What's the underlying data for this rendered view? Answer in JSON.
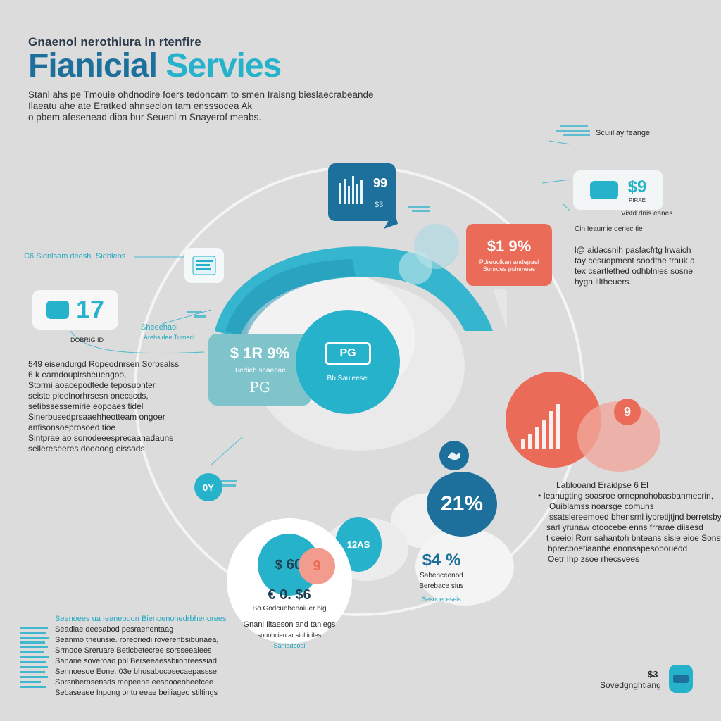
{
  "colors": {
    "background": "#dcdcdc",
    "primary_dark": "#1d6f9c",
    "teal": "#27b2cc",
    "coral": "#ea6b57",
    "white": "#ffffff"
  },
  "header": {
    "pretitle": "Gnaenol nerothiura in rtenfire",
    "title_part1": "Fianicial",
    "title_part2": "Servies",
    "intro_lines": [
      "Stanl ahs pe Tmouie ohdnodire foers tedoncam to smen Iraisng bieslaecrabeande",
      "Ilaeatu ahe ate Eratked ahnseclon tam ensssocea Ak",
      "o pbem afesenead diba bur Seuenl m Snayerof meabs."
    ]
  },
  "callouts": {
    "top_right_label": "Scuiillay feange",
    "top_right_value": "$9",
    "top_right_sub": "PIRAE",
    "top_right_line1": "Vistd dnis eanes",
    "top_right_line2": "Cin Ieaumie deriec tie",
    "left_label_a": "C6 Sidnlsam deesh",
    "left_label_b": "Sidblens",
    "left_card_value": "17",
    "left_card_caption": "DOBRIG ID",
    "mid_left_label": "Sheeehaol",
    "mid_left_sub": "Arebsidee Tumecl",
    "center_bubble_text": "PG",
    "center_bubble_caption": "Bb Sauieesel",
    "top_card_value": "99",
    "top_card_sub": "$3",
    "coral_card_value": "$1 9%",
    "coral_card_line1": "Pdreuolkan andepasl",
    "coral_card_line2": "Sonrdes pslnmeas",
    "teal_card_value": "$ 1R 9%",
    "teal_card_caption": "Tiedieh seaeeae",
    "teal_card_script": "PG",
    "small_badge": "0Y",
    "percent_circle": "21%",
    "bottom_left_circle_a": "$",
    "bottom_left_circle_b": "60",
    "bottom_left_circle_c": "9",
    "bottom_teal_circle": "12AS",
    "bottom_value": "$4 %",
    "bottom_value_line1": "Sabenceonod",
    "bottom_value_line2": "Berebace sius",
    "bottom_value_line3": "Sesoceceseis",
    "white_circle_value": "€ 0. $6",
    "white_circle_line1": "Bo Godcuehenaiuer big",
    "white_circle_line2": "Gnanl Iitaeson and taniegs",
    "white_circle_line3": "souohcien ar siul iuiles",
    "white_circle_line4": "Saniadeoal",
    "coral_circle_value": "60",
    "coral_badge": "9",
    "bottom_right_label": "Sovedgnghtiang",
    "bottom_right_value": "$3"
  },
  "text_blocks": {
    "right_a": [
      "l@ aidacsnih pasfacfrtg lrwaich",
      "tay cesuopment soodthe trauk a.",
      "tex csartlethed odhblnies sosne",
      "hyga liltheuers."
    ],
    "right_b": [
      "Lablooand Eraidpse 6 El",
      "• Ieanugting soasroe ornepnohobasbanmecrin,",
      "Ouiblamss noarsge comuns",
      "ssatslereemoed bhensrnl iypretijtjnd berretsby",
      "sarl yrunaw otoocebe enns frrarae diisesd",
      "t ceeioi Rorr sahantoh bnteans sisie eioe Sonst",
      "bprecboetiaanhe enonsapesobouedd",
      "Oetr Ihp zsoe rhecsvees"
    ],
    "left_a": [
      "549 eisendurgd Ropeodnrsen Sorbsalss",
      "6 k earndouplrsheuengoo,",
      "Stormi aoacepodtede teposuonter",
      "seiste ploelnorhrsesn onecscds,",
      "setibssessemirie eopoaes tidel",
      "Sinerbusedprsaaehheotteam ongoer",
      "anfisonsoeprosoed tioe",
      "Sintprae ao sonodeeesprecaanadauns",
      "sellereseeres dooooog eissads"
    ],
    "bottom_left": [
      "Seenoees ua Ieanepuon Bienoenohedrbhenorees",
      "Seadiae deesabod pesraenentaag",
      "Seanmo tneunsie. roreoriedi roverenbsibunaea,",
      "Srmooe Sreruare Beticbetecree sorsseeaiees",
      "Sanane soveroao pbl Berseeaessbiionreessiad",
      "Sennoesoe Eone. 03e bhosabocosecaepassse",
      "Sprsnbernsensds mopeene eesbooeobeefcee",
      "Sebaseaee Inpong ontu eeae beiliageo stiltings"
    ]
  }
}
